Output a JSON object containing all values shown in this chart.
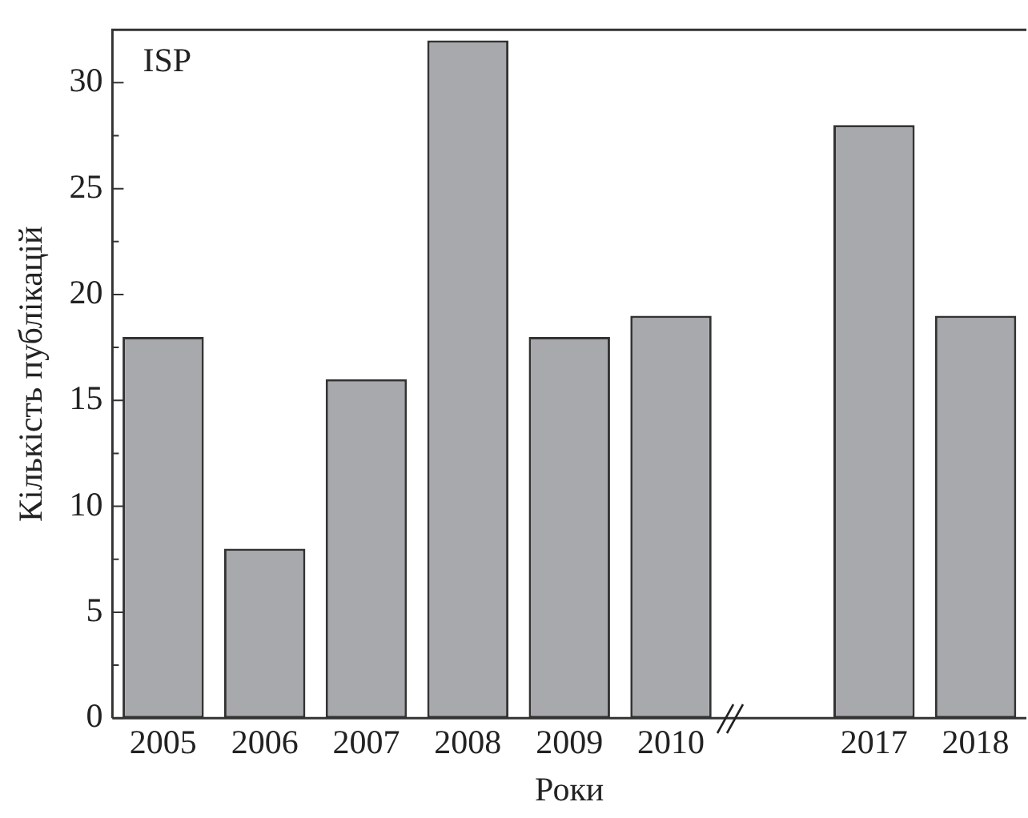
{
  "chart_data": {
    "type": "bar",
    "xlabel": "Роки",
    "ylabel": "Кількість публікацій",
    "annotations": [
      "ISP"
    ],
    "categories": [
      "2005",
      "2006",
      "2007",
      "2008",
      "2009",
      "2010",
      null,
      "2017",
      "2018"
    ],
    "values": [
      18,
      8,
      16,
      32,
      18,
      19,
      null,
      28,
      19
    ],
    "color": "#a8a9ad",
    "ylim": [
      0,
      32.5
    ],
    "yticks": [
      0,
      {
        "value": 2.5,
        "label": null
      },
      5,
      {
        "value": 7.5,
        "label": null
      },
      10,
      {
        "value": 12.5,
        "label": null
      },
      15,
      {
        "value": 17.5,
        "label": null
      },
      20,
      {
        "value": 22.5,
        "label": null
      },
      25,
      {
        "value": 27.5,
        "label": null
      },
      30
    ],
    "grid": false,
    "legend": false
  }
}
